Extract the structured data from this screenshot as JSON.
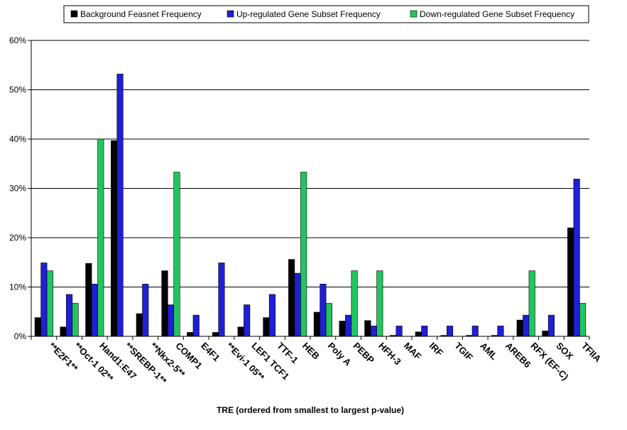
{
  "chart_data": {
    "type": "bar",
    "xlabel": "TRE (ordered from smallest to largest p-value)",
    "ylabel": "",
    "ylim": [
      0,
      60
    ],
    "y_ticks": [
      "0%",
      "10%",
      "20%",
      "30%",
      "40%",
      "50%",
      "60%"
    ],
    "y_tick_values": [
      0,
      10,
      20,
      30,
      40,
      50,
      60
    ],
    "grid": true,
    "legend_position": "top",
    "categories": [
      "**E2F1**",
      "**Oct-1 02**",
      "Hand1:E47",
      "**SREBP-1**",
      "**Nkx2-5**",
      "COMP1",
      "E4F1",
      "**Evi-1 05**",
      "LEF1 TCF1",
      "TTF-1",
      "HEB",
      "Poly A",
      "PEBP",
      "HFH-3",
      "MAF",
      "IRF",
      "TGIF",
      "AML",
      "AREB6",
      "RFX (EF-C)",
      "SOX",
      "TFIIA"
    ],
    "series": [
      {
        "name": "Background Feasnet Frequency",
        "color": "#000000",
        "values": [
          3.8,
          1.9,
          14.8,
          39.7,
          4.6,
          13.3,
          0.8,
          0.8,
          1.9,
          3.8,
          15.6,
          4.9,
          3.1,
          3.2,
          0.2,
          0.9,
          0.2,
          0.2,
          0.2,
          3.3,
          1.1,
          22.0
        ]
      },
      {
        "name": "Up-regulated Gene Subset Frequency",
        "color": "#1f1fd6",
        "values": [
          14.9,
          8.5,
          10.6,
          53.2,
          10.6,
          6.4,
          4.3,
          14.9,
          6.4,
          8.5,
          12.8,
          10.6,
          4.3,
          2.1,
          2.1,
          2.1,
          2.1,
          2.1,
          2.1,
          4.3,
          4.3,
          31.9
        ]
      },
      {
        "name": "Down-regulated Gene Subset Frequency",
        "color": "#22c55e",
        "values": [
          13.3,
          6.7,
          40.0,
          0,
          0,
          33.3,
          0,
          0,
          0,
          0,
          33.3,
          6.7,
          13.3,
          13.3,
          0,
          0,
          0,
          0,
          0,
          13.3,
          0,
          6.7
        ]
      }
    ]
  }
}
